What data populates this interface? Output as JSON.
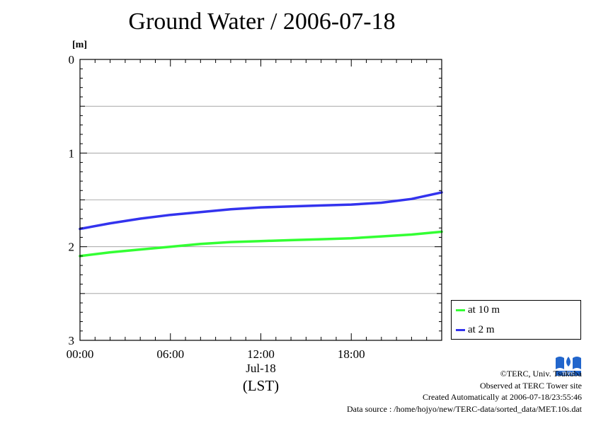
{
  "title": "Ground Water / 2006-07-18",
  "unit_label": "[m]",
  "chart_data": {
    "type": "line",
    "title": "Ground Water / 2006-07-18",
    "ylabel": "[m]",
    "y_inverted": true,
    "ylim": [
      0,
      3
    ],
    "y_ticks": [
      "0",
      "1",
      "2",
      "3"
    ],
    "xlim": [
      0,
      24
    ],
    "x_tick_values": [
      0,
      6,
      12,
      18
    ],
    "x_ticks": [
      "00:00",
      "06:00",
      "12:00",
      "18:00"
    ],
    "x_date_label": "Jul-18",
    "x_timezone_label": "(LST)",
    "grid": "horizontal",
    "legend_position": "right-bottom",
    "series": [
      {
        "name": "at 10 m",
        "color": "#33ff33",
        "x": [
          0,
          2,
          4,
          6,
          8,
          10,
          12,
          14,
          16,
          18,
          20,
          22,
          24
        ],
        "values": [
          2.1,
          2.06,
          2.03,
          2.0,
          1.97,
          1.95,
          1.94,
          1.93,
          1.92,
          1.91,
          1.89,
          1.87,
          1.84
        ]
      },
      {
        "name": "at 2 m",
        "color": "#3333ee",
        "x": [
          0,
          2,
          4,
          6,
          8,
          10,
          12,
          14,
          16,
          18,
          20,
          22,
          24
        ],
        "values": [
          1.81,
          1.75,
          1.7,
          1.66,
          1.63,
          1.6,
          1.58,
          1.57,
          1.56,
          1.55,
          1.53,
          1.49,
          1.42
        ]
      }
    ]
  },
  "credits": {
    "copyright": "©TERC, Univ. Tsukuba",
    "observed": "Observed at TERC Tower site",
    "created": "Created Automatically at 2006-07-18/23:55:46",
    "source": "Data source : /home/hojyo/new/TERC-data/sorted_data/MET.10s.dat"
  },
  "logo": {
    "name": "terc-logo-icon",
    "text": "TERC",
    "color": "#2266cc"
  }
}
